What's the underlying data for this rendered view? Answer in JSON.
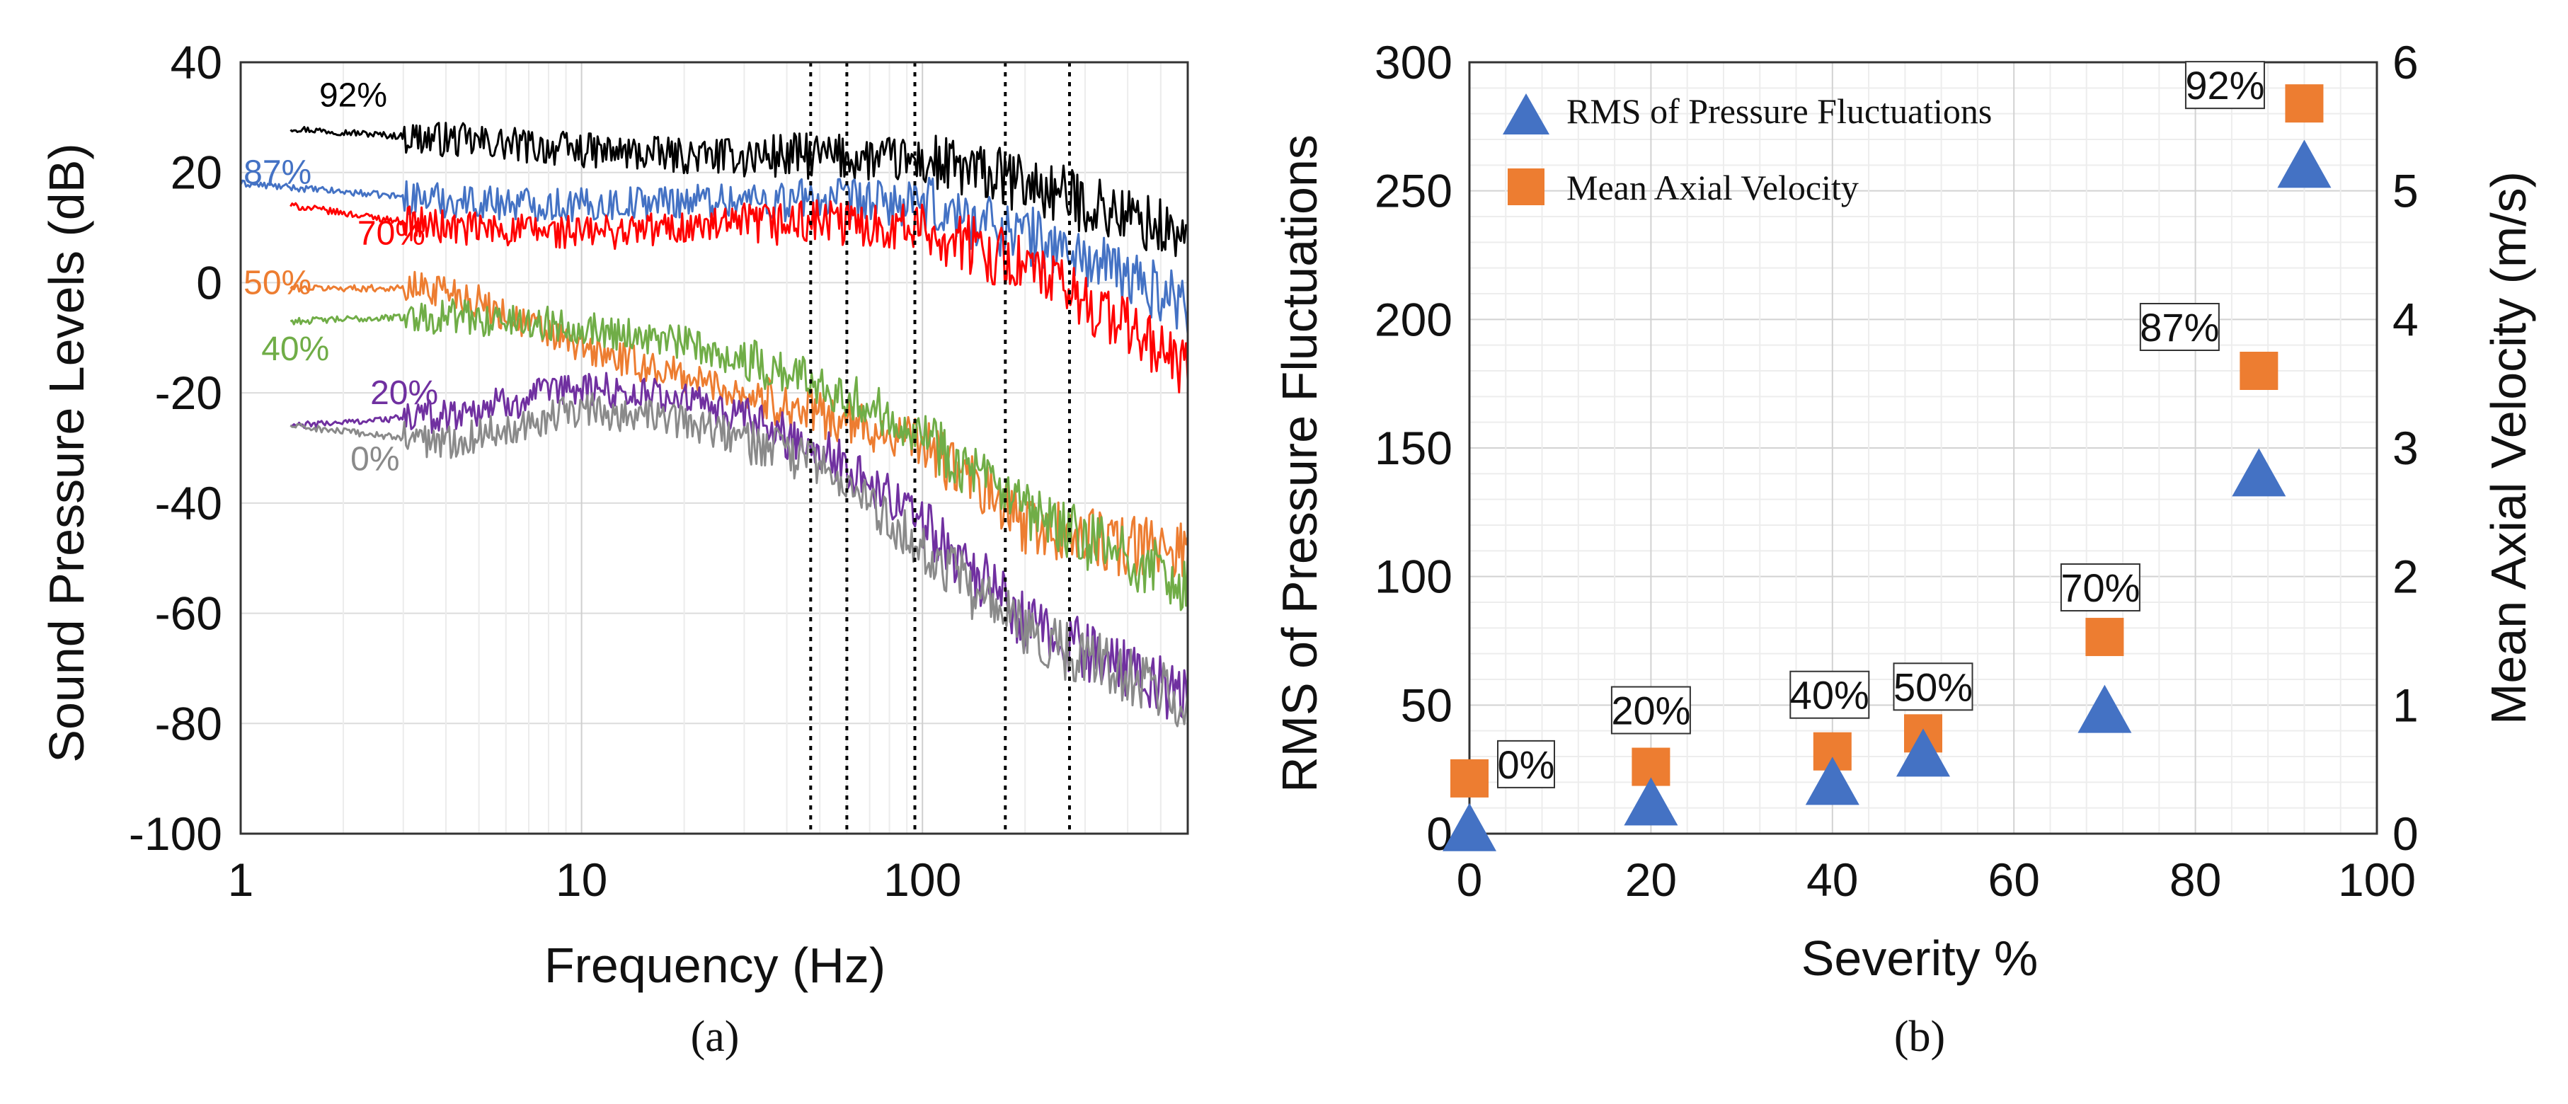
{
  "panel_a": {
    "caption": "(a)",
    "ylabel": "Sound Pressure Levels (dB)",
    "xlabel": "Frequency (Hz)",
    "y_ticks": [
      "40",
      "20",
      "0",
      "-20",
      "-40",
      "-60",
      "-80",
      "-100"
    ],
    "x_ticks": [
      "1",
      "10",
      "100"
    ]
  },
  "panel_b": {
    "caption": "(b)",
    "ylabel_left": "RMS of Pressure Fluctuations",
    "ylabel_right": "Mean Axial Velocity (m/s)",
    "xlabel": "Severity %",
    "y_ticks_left": [
      "300",
      "250",
      "200",
      "150",
      "100",
      "50",
      "0"
    ],
    "y_ticks_right": [
      "6",
      "5",
      "4",
      "3",
      "2",
      "1",
      "0"
    ],
    "x_ticks": [
      "0",
      "20",
      "40",
      "60",
      "80",
      "100"
    ],
    "legend": [
      "RMS of Pressure Fluctuations",
      "Mean Axial Velocity"
    ]
  },
  "colors": {
    "0%": "#8a8a8a",
    "20%": "#7030a0",
    "40%": "#70ad47",
    "50%": "#ed7d31",
    "70%": "#ff0000",
    "87%": "#4472c4",
    "92%": "#000000",
    "triangle": "#4472c4",
    "square": "#ed7d31"
  },
  "chart_data": [
    {
      "type": "line",
      "xlabel": "Frequency (Hz)",
      "ylabel": "Sound Pressure Levels (dB)",
      "xscale": "log",
      "xlim": [
        1,
        600
      ],
      "ylim": [
        -100,
        40
      ],
      "grid": true,
      "vertical_reference_lines_hz": [
        47,
        60,
        95,
        175,
        270
      ],
      "series": [
        {
          "name": "92%",
          "x": [
            1.4,
            4,
            10,
            20,
            50,
            100,
            200,
            400,
            600
          ],
          "y": [
            28,
            26,
            24,
            23,
            23,
            22,
            18,
            12,
            8
          ]
        },
        {
          "name": "87%",
          "x": [
            1,
            4,
            10,
            20,
            50,
            100,
            200,
            400,
            600
          ],
          "y": [
            18,
            15,
            14,
            15,
            15,
            14,
            9,
            1,
            -4
          ]
        },
        {
          "name": "70%",
          "x": [
            1.4,
            4,
            10,
            20,
            50,
            100,
            200,
            400,
            600
          ],
          "y": [
            14,
            10,
            9,
            10,
            11,
            10,
            3,
            -8,
            -16
          ]
        },
        {
          "name": "50%",
          "x": [
            1.4,
            4,
            10,
            20,
            50,
            100,
            200,
            400,
            600
          ],
          "y": [
            -1,
            -1,
            -12,
            -17,
            -24,
            -29,
            -44,
            -48,
            -48
          ]
        },
        {
          "name": "40%",
          "x": [
            1.4,
            4,
            10,
            20,
            50,
            100,
            200,
            400,
            600
          ],
          "y": [
            -7,
            -6,
            -8,
            -11,
            -18,
            -27,
            -42,
            -50,
            -55
          ]
        },
        {
          "name": "20%",
          "x": [
            1.4,
            4,
            10,
            20,
            50,
            100,
            200,
            400,
            600
          ],
          "y": [
            -26,
            -24,
            -19,
            -21,
            -30,
            -43,
            -62,
            -70,
            -76
          ]
        },
        {
          "name": "0%",
          "x": [
            1.4,
            4,
            10,
            20,
            50,
            100,
            200,
            400,
            600
          ],
          "y": [
            -26,
            -29,
            -23,
            -25,
            -33,
            -48,
            -64,
            -71,
            -76
          ]
        }
      ]
    },
    {
      "type": "scatter",
      "xlabel": "Severity %",
      "ylabel": "RMS of Pressure Fluctuations",
      "y2label": "Mean Axial Velocity (m/s)",
      "xlim": [
        0,
        100
      ],
      "ylim": [
        0,
        300
      ],
      "y2lim": [
        0,
        6
      ],
      "grid": true,
      "legend_position": "top-left",
      "series": [
        {
          "name": "RMS of Pressure Fluctuations",
          "axis": "left",
          "marker": "triangle",
          "x": [
            0,
            20,
            40,
            50,
            70,
            87,
            92
          ],
          "y": [
            2,
            12,
            20,
            31,
            48,
            140,
            260
          ]
        },
        {
          "name": "Mean Axial Velocity",
          "axis": "right",
          "marker": "square",
          "x": [
            0,
            20,
            40,
            50,
            70,
            87,
            92
          ],
          "y": [
            0.43,
            0.52,
            0.64,
            0.78,
            1.53,
            3.6,
            5.68
          ]
        }
      ],
      "point_labels": [
        "0%",
        "20%",
        "40%",
        "50%",
        "70%",
        "87%",
        "92%"
      ]
    }
  ]
}
